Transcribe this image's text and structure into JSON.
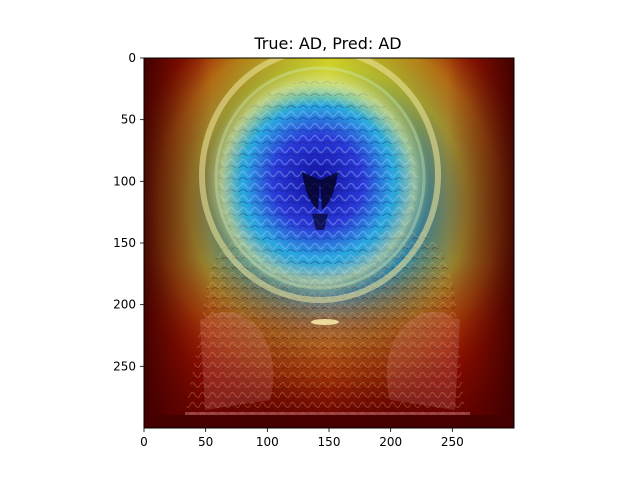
{
  "figure": {
    "title": "True: AD, Pred: AD",
    "image_subject": "brain-mri-coronal-gradcam-heatmap",
    "x_axis": {
      "range": [
        0,
        300
      ],
      "ticks": [
        {
          "value": 0,
          "label": "0"
        },
        {
          "value": 50,
          "label": "50"
        },
        {
          "value": 100,
          "label": "100"
        },
        {
          "value": 150,
          "label": "150"
        },
        {
          "value": 200,
          "label": "200"
        },
        {
          "value": 250,
          "label": "250"
        }
      ]
    },
    "y_axis": {
      "range": [
        0,
        300
      ],
      "inverted": true,
      "ticks": [
        {
          "value": 0,
          "label": "0"
        },
        {
          "value": 50,
          "label": "50"
        },
        {
          "value": 100,
          "label": "100"
        },
        {
          "value": 150,
          "label": "150"
        },
        {
          "value": 200,
          "label": "200"
        },
        {
          "value": 250,
          "label": "250"
        }
      ]
    },
    "colors": {
      "heat_low": "#1a1aa8",
      "heat_mid": "#2ec8c8",
      "heat_high": "#e8e020",
      "heat_max": "#8a0000",
      "background_dark": "#3a0000"
    }
  }
}
